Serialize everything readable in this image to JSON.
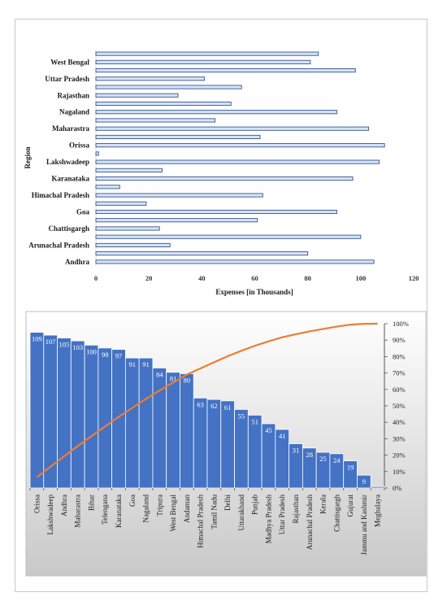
{
  "colors": {
    "bar_fill": "#4472c4",
    "bar_stroke": "#2f5597",
    "bar_highlight": "#dae3f3",
    "pareto_line": "#ed7d31",
    "axis_text": "#1a1a1a",
    "panel_gradient_top": "#ffffff",
    "panel_gradient_bottom": "#c9c9c9"
  },
  "chart_data": [
    {
      "type": "bar",
      "orientation": "horizontal",
      "title": "",
      "ylabel": "Region",
      "xlabel": "Expenses [in Thousands]",
      "xlim": [
        0,
        120
      ],
      "xticks": [
        "0",
        "20",
        "40",
        "60",
        "80",
        "100",
        "120"
      ],
      "tick_labels": [
        "Andhra",
        "Arunachal Pradesh",
        "Chattisgargh",
        "Goa",
        "Himachal Pradesh",
        "Karanataka",
        "Lakshwadeep",
        "Orissa",
        "Maharastra",
        "Nagaland",
        "Rajasthan",
        "Uttar Pradesh",
        "West Bengal"
      ],
      "categories": [
        "Andhra",
        "",
        "Arunachal Pradesh",
        "",
        "Chattisgargh",
        "",
        "Goa",
        "",
        "Himachal Pradesh",
        "",
        "Karanataka",
        "",
        "Lakshwadeep",
        "",
        "Orissa",
        "",
        "Maharastra",
        "",
        "Nagaland",
        "",
        "Rajasthan",
        "",
        "Uttar Pradesh",
        "",
        "West Bengal",
        ""
      ],
      "values": [
        105,
        80,
        28,
        100,
        24,
        61,
        91,
        19,
        63,
        9,
        97,
        25,
        107,
        1,
        109,
        62,
        103,
        45,
        91,
        51,
        31,
        55,
        41,
        98,
        81,
        84
      ],
      "grid": false,
      "legend": "none"
    },
    {
      "type": "bar",
      "subtype": "pareto",
      "title": "",
      "categories": [
        "Orissa",
        "Lakshwadeep",
        "Andhra",
        "Maharastra",
        "Bihar",
        "Telengana",
        "Karanataka",
        "Goa",
        "Nagaland",
        "Tripura",
        "West Bengal",
        "Andaman",
        "Himachal Pradesh",
        "Tamil Nadu",
        "Delhi",
        "Uttarakhand",
        "Punjab",
        "Madhya Pradesh",
        "Uttar Pradesh",
        "Rajasthan",
        "Arunachal Pradesh",
        "Kerala",
        "Chattisgargh",
        "Gujurat",
        "Jammu and Kashmir",
        "Meghalaya"
      ],
      "values": [
        109,
        107,
        105,
        103,
        100,
        98,
        97,
        91,
        91,
        84,
        81,
        80,
        63,
        62,
        61,
        55,
        51,
        45,
        41,
        31,
        28,
        25,
        24,
        19,
        9,
        1
      ],
      "data_labels": [
        "109",
        "107",
        "105",
        "103",
        "100",
        "98",
        "97",
        "91",
        "91",
        "84",
        "81",
        "80",
        "63",
        "62",
        "61",
        "55",
        "51",
        "45",
        "41",
        "31",
        "28",
        "25",
        "24",
        "19",
        "9",
        ""
      ],
      "ylim": [
        0,
        115
      ],
      "secondary_y_ticks": [
        "0%",
        "10%",
        "20%",
        "30%",
        "40%",
        "50%",
        "60%",
        "70%",
        "80%",
        "90%",
        "100%"
      ],
      "y2lim": [
        0,
        1
      ],
      "line_series": "cumulative percentage",
      "grid": false,
      "legend": "none"
    }
  ]
}
